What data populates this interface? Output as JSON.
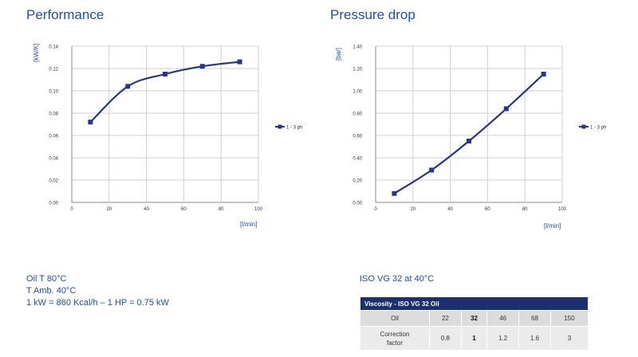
{
  "performance": {
    "title": "Performance",
    "y_unit": "[kW/K]",
    "x_unit": "[l/min]",
    "legend": "1 - 3 ph"
  },
  "pressure": {
    "title": "Pressure drop",
    "y_unit": "[bar]",
    "x_unit": "[l/min]",
    "legend": "1 - 3 ph"
  },
  "notes": {
    "line1": "Oil T 80°C",
    "line2": "T Amb. 40°C",
    "line3": "1 kW = 860 Kcal/h – 1 HP = 0.75 kW"
  },
  "viscosity": {
    "title": "ISO VG 32 at 40°C",
    "header": "Viscosity - ISO VG 32 Oil",
    "row1": [
      "Oil",
      "22",
      "32",
      "46",
      "68",
      "150"
    ],
    "row2_label_a": "Correction",
    "row2_label_b": "factor",
    "row2": [
      "0.8",
      "1",
      "1.2",
      "1.6",
      "3"
    ]
  },
  "colors": {
    "series": "#2a3488",
    "grid": "#d0d0d0",
    "title": "#1f4fa8",
    "table_header": "#1c2f6e"
  },
  "chart_data": [
    {
      "type": "line",
      "title": "Performance",
      "ylabel": "[kW/K]",
      "xlabel": "[l/min]",
      "xlim": [
        0,
        100
      ],
      "ylim": [
        0,
        0.14
      ],
      "xticks": [
        "0",
        "20",
        "40",
        "60",
        "80",
        "100"
      ],
      "yticks": [
        "0.00",
        "0.02",
        "0.04",
        "0.06",
        "0.08",
        "0.10",
        "0.12",
        "0.14"
      ],
      "grid": true,
      "legend_position": "right",
      "series": [
        {
          "name": "1 - 3 ph",
          "x": [
            10,
            30,
            50,
            70,
            90
          ],
          "y": [
            0.072,
            0.104,
            0.115,
            0.122,
            0.126
          ]
        }
      ]
    },
    {
      "type": "line",
      "title": "Pressure drop",
      "ylabel": "[bar]",
      "xlabel": "[l/min]",
      "xlim": [
        0,
        100
      ],
      "ylim": [
        0,
        1.4
      ],
      "xticks": [
        "0",
        "20",
        "40",
        "60",
        "80",
        "100"
      ],
      "yticks": [
        "0.00",
        "0.20",
        "0.40",
        "0.60",
        "0.80",
        "1.00",
        "1.20",
        "1.40"
      ],
      "grid": true,
      "legend_position": "right",
      "series": [
        {
          "name": "1 - 3 ph",
          "x": [
            10,
            30,
            50,
            70,
            90
          ],
          "y": [
            0.08,
            0.29,
            0.55,
            0.84,
            1.15
          ]
        }
      ]
    }
  ]
}
